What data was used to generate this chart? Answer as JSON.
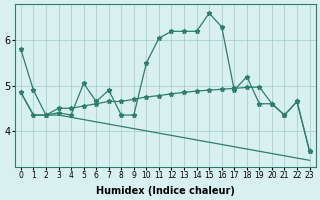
{
  "xlabel": "Humidex (Indice chaleur)",
  "x": [
    0,
    1,
    2,
    3,
    4,
    5,
    6,
    7,
    8,
    9,
    10,
    11,
    12,
    13,
    14,
    15,
    16,
    17,
    18,
    19,
    20,
    21,
    22,
    23
  ],
  "line1": [
    5.8,
    4.9,
    4.35,
    4.4,
    4.35,
    5.05,
    4.65,
    4.9,
    4.35,
    4.35,
    5.5,
    6.05,
    6.2,
    6.2,
    6.2,
    6.6,
    6.3,
    4.9,
    5.2,
    4.6,
    4.6,
    4.35,
    4.65,
    3.55
  ],
  "line2": [
    4.85,
    4.35,
    4.35,
    4.5,
    4.5,
    4.55,
    4.6,
    4.65,
    4.65,
    4.7,
    4.75,
    4.78,
    4.82,
    4.85,
    4.88,
    4.9,
    4.92,
    4.94,
    4.96,
    4.97,
    4.6,
    4.35,
    4.65,
    3.55
  ],
  "line3": [
    4.85,
    4.35,
    4.35,
    4.35,
    4.3,
    4.25,
    4.2,
    4.15,
    4.1,
    4.05,
    4.0,
    3.95,
    3.9,
    3.85,
    3.8,
    3.75,
    3.7,
    3.65,
    3.6,
    3.55,
    3.5,
    3.45,
    3.4,
    3.35
  ],
  "line_color": "#2e7d6e",
  "bg_color": "#d8f0f0",
  "grid_color": "#a0c8c8",
  "ylim": [
    3.2,
    6.8
  ],
  "yticks": [
    4,
    5,
    6
  ],
  "xlim": [
    -0.5,
    23.5
  ]
}
